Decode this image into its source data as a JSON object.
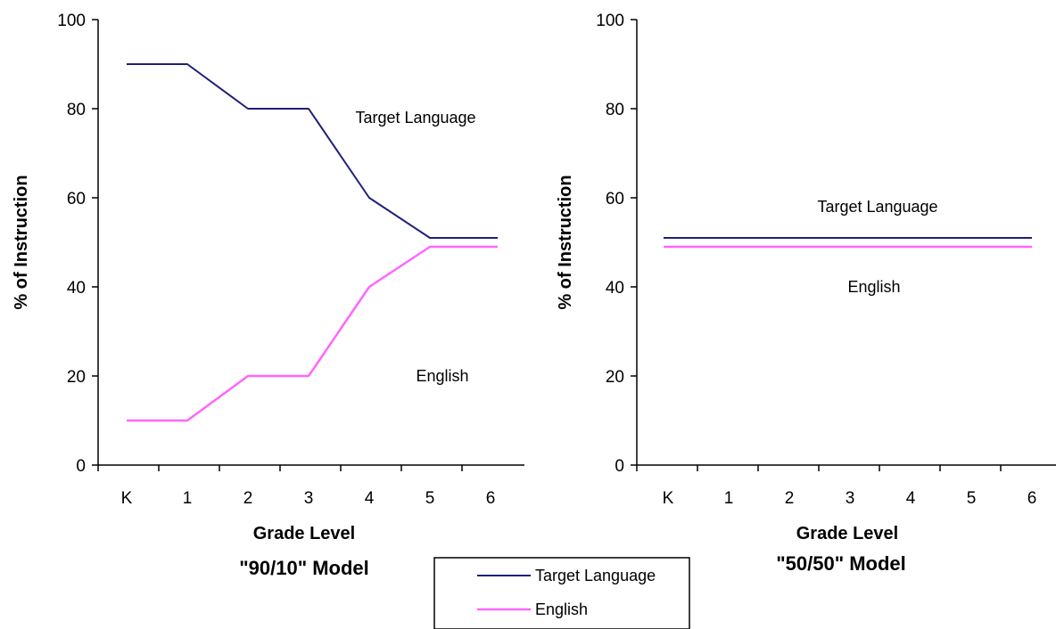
{
  "chart_data": [
    {
      "type": "line",
      "title": "\"90/10\" Model",
      "xlabel": "Grade Level",
      "ylabel": "% of Instruction",
      "categories": [
        "K",
        "1",
        "2",
        "3",
        "4",
        "5",
        "6"
      ],
      "ylim": [
        0,
        100
      ],
      "yticks": [
        "0",
        "20",
        "40",
        "60",
        "80",
        "100"
      ],
      "grid": false,
      "series": [
        {
          "name": "Target Language",
          "color": "#1f1f7a",
          "values": [
            90,
            90,
            80,
            80,
            60,
            51,
            51
          ]
        },
        {
          "name": "English",
          "color": "#ff66ff",
          "values": [
            10,
            10,
            20,
            20,
            40,
            49,
            49
          ]
        }
      ],
      "annotations": [
        "Target Language",
        "English"
      ]
    },
    {
      "type": "line",
      "title": "\"50/50\" Model",
      "xlabel": "Grade Level",
      "ylabel": "% of Instruction",
      "categories": [
        "K",
        "1",
        "2",
        "3",
        "4",
        "5",
        "6"
      ],
      "ylim": [
        0,
        100
      ],
      "yticks": [
        "0",
        "20",
        "40",
        "60",
        "80",
        "100"
      ],
      "grid": false,
      "series": [
        {
          "name": "Target Language",
          "color": "#1f1f7a",
          "values": [
            51,
            51,
            51,
            51,
            51,
            51,
            51
          ]
        },
        {
          "name": "English",
          "color": "#ff66ff",
          "values": [
            49,
            49,
            49,
            49,
            49,
            49,
            49
          ]
        }
      ],
      "annotations": [
        "Target Language",
        "English"
      ]
    }
  ],
  "legend": {
    "placement": "bottom-center",
    "items": [
      {
        "label": "Target Language",
        "color": "#1f1f7a"
      },
      {
        "label": "English",
        "color": "#ff66ff"
      }
    ]
  }
}
